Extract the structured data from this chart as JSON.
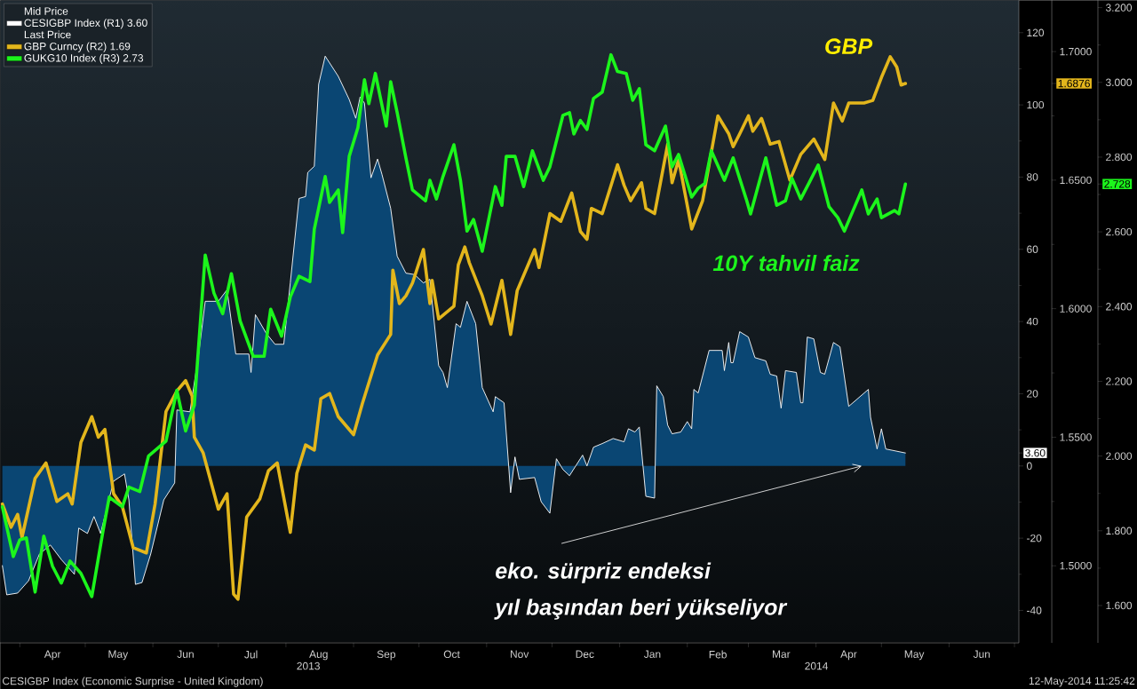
{
  "chart_data": {
    "type": "line",
    "xlim": [
      "2013-03-23",
      "2014-07-03"
    ],
    "xticks": [
      {
        "value": "2013-04-16",
        "label": "Apr"
      },
      {
        "value": "2013-05-16",
        "label": "May"
      },
      {
        "value": "2013-06-16",
        "label": "Jun"
      },
      {
        "value": "2013-07-16",
        "label": "Jul"
      },
      {
        "value": "2013-08-16",
        "label": "Aug"
      },
      {
        "value": "2013-09-16",
        "label": "Sep"
      },
      {
        "value": "2013-10-16",
        "label": "Oct"
      },
      {
        "value": "2013-11-16",
        "label": "Nov"
      },
      {
        "value": "2013-12-16",
        "label": "Dec"
      },
      {
        "value": "2014-01-16",
        "label": "Jan"
      },
      {
        "value": "2014-02-15",
        "label": "Feb"
      },
      {
        "value": "2014-03-16",
        "label": "Mar"
      },
      {
        "value": "2014-04-16",
        "label": "Apr"
      },
      {
        "value": "2014-05-16",
        "label": "May"
      },
      {
        "value": "2014-06-16",
        "label": "Jun"
      },
      {
        "value": "2013-04-01",
        "label": null
      },
      {
        "value": "2013-05-01",
        "label": null
      },
      {
        "value": "2013-06-01",
        "label": null
      },
      {
        "value": "2013-07-01",
        "label": null
      },
      {
        "value": "2013-08-01",
        "label": null
      },
      {
        "value": "2013-09-01",
        "label": null
      },
      {
        "value": "2013-10-01",
        "label": null
      },
      {
        "value": "2013-11-01",
        "label": null
      },
      {
        "value": "2013-12-01",
        "label": null
      },
      {
        "value": "2014-01-01",
        "label": null
      },
      {
        "value": "2014-02-01",
        "label": null
      },
      {
        "value": "2014-03-01",
        "label": null
      },
      {
        "value": "2014-04-01",
        "label": null
      },
      {
        "value": "2014-05-01",
        "label": null
      },
      {
        "value": "2014-06-01",
        "label": null
      },
      {
        "value": "2014-07-01",
        "label": null
      }
    ],
    "ylim": [
      -49,
      129
    ],
    "yticks": [
      -40,
      -20,
      0,
      20,
      40,
      60,
      80,
      100,
      120,
      {
        "value": 3.6,
        "label": "3.60"
      }
    ],
    "y2lim": [
      1.47,
      1.72
    ],
    "y2ticks": [
      {
        "value": 1.5,
        "label": "1.5000"
      },
      {
        "value": 1.55,
        "label": "1.5500"
      },
      {
        "value": 1.6,
        "label": "1.6000"
      },
      {
        "value": 1.65,
        "label": "1.6500"
      },
      {
        "value": 1.7,
        "label": "1.7000"
      },
      {
        "value": 1.6876,
        "label": "1.6876"
      }
    ],
    "y3lim": [
      1.5,
      3.22
    ],
    "y3ticks": [
      {
        "value": 1.6,
        "label": "1.600"
      },
      {
        "value": 1.8,
        "label": "1.800"
      },
      {
        "value": 2.0,
        "label": "2.000"
      },
      {
        "value": 2.2,
        "label": "2.200"
      },
      {
        "value": 2.4,
        "label": "2.400"
      },
      {
        "value": 2.6,
        "label": "2.600"
      },
      {
        "value": 2.8,
        "label": "2.800"
      },
      {
        "value": 3.0,
        "label": "3.000"
      },
      {
        "value": 3.2,
        "label": "3.200"
      },
      {
        "value": 2.728,
        "label": "2.728"
      }
    ],
    "legend": "top left",
    "annotations": [
      "Mid Price",
      "Last Price",
      "GBP",
      "10Y tahvil faiz",
      {
        "text": "eko. sürpriz endeksi",
        "x": "2014-04-22",
        "y": 0
      },
      "yıl başından beri yükseliyor",
      "CESIGBP Index (Economic Surprise - United Kingdom)",
      "12-May-2014 11:25:42",
      "2013",
      "2014"
    ],
    "series": [
      {
        "name": "CESIGBP Index (R1) 3.60",
        "type": "area",
        "color": "#ffffff",
        "x": [
          "2013-03-24",
          "2013-03-26",
          "2013-03-31",
          "2013-04-05",
          "2013-04-10",
          "2013-04-15",
          "2013-04-20",
          "2013-04-26",
          "2013-04-28",
          "2013-05-02",
          "2013-05-05",
          "2013-05-08",
          "2013-05-14",
          "2013-05-19",
          "2013-05-21",
          "2013-05-24",
          "2013-05-27",
          "2013-05-31",
          "2013-06-06",
          "2013-06-11",
          "2013-06-12",
          "2013-06-18",
          "2013-06-22",
          "2013-06-25",
          "2013-07-01",
          "2013-07-05",
          "2013-07-09",
          "2013-07-15",
          "2013-07-16",
          "2013-07-18",
          "2013-07-23",
          "2013-07-27",
          "2013-07-31",
          "2013-08-03",
          "2013-08-07",
          "2013-08-10",
          "2013-08-11",
          "2013-08-14",
          "2013-08-16",
          "2013-08-19",
          "2013-08-25",
          "2013-08-30",
          "2013-09-02",
          "2013-09-04",
          "2013-09-06",
          "2013-09-09",
          "2013-09-12",
          "2013-09-14",
          "2013-09-18",
          "2013-09-21",
          "2013-09-25",
          "2013-09-29",
          "2013-10-03",
          "2013-10-06",
          "2013-10-10",
          "2013-10-12",
          "2013-10-14",
          "2013-10-18",
          "2013-10-20",
          "2013-10-23",
          "2013-10-27",
          "2013-10-30",
          "2013-11-04",
          "2013-11-05",
          "2013-11-09",
          "2013-11-12",
          "2013-11-14",
          "2013-11-16",
          "2013-11-23",
          "2013-11-26",
          "2013-11-30",
          "2013-12-03",
          "2013-12-06",
          "2013-12-09",
          "2013-12-15",
          "2013-12-17",
          "2013-12-20",
          "2013-12-24",
          "2013-12-29",
          "2014-01-03",
          "2014-01-05",
          "2014-01-08",
          "2014-01-10",
          "2014-01-13",
          "2014-01-17",
          "2014-01-18",
          "2014-01-21",
          "2014-01-23",
          "2014-01-25",
          "2014-01-29",
          "2014-02-01",
          "2014-02-03",
          "2014-02-04",
          "2014-02-06",
          "2014-02-11",
          "2014-02-17",
          "2014-02-18",
          "2014-02-20",
          "2014-02-21",
          "2014-02-22",
          "2014-02-25",
          "2014-03-01",
          "2014-03-04",
          "2014-03-09",
          "2014-03-11",
          "2014-03-14",
          "2014-03-16",
          "2014-03-18",
          "2014-03-23",
          "2014-03-25",
          "2014-03-26",
          "2014-03-28",
          "2014-03-31",
          "2014-04-03",
          "2014-04-05",
          "2014-04-09",
          "2014-04-12",
          "2014-04-16",
          "2014-04-25",
          "2014-04-26",
          "2014-04-29",
          "2014-05-01",
          "2014-05-03",
          "2014-05-12"
        ],
        "values": [
          -27.6,
          -35.7,
          -35.2,
          -31.8,
          -24.4,
          -21.9,
          -25.9,
          -30.0,
          -17.2,
          -18.7,
          -14.0,
          -18.7,
          -4.2,
          -2.2,
          -9.4,
          -32.8,
          -32.3,
          -24.4,
          -9.4,
          -4.7,
          15.5,
          15.0,
          31.0,
          45.6,
          45.6,
          48.8,
          31.0,
          31.0,
          25.9,
          41.9,
          36.7,
          33.7,
          33.7,
          50.7,
          74.1,
          74.6,
          81.3,
          83.0,
          105.7,
          113.5,
          107.9,
          101.5,
          96.3,
          102.2,
          100.5,
          79.8,
          85.0,
          80.8,
          71.4,
          58.1,
          53.4,
          53.0,
          50.7,
          51.7,
          27.8,
          25.9,
          21.7,
          39.4,
          38.4,
          45.6,
          39.4,
          21.7,
          15.0,
          19.2,
          17.5,
          -7.4,
          2.5,
          -3.7,
          -3.2,
          -9.9,
          -13.1,
          2.0,
          -1.0,
          -2.7,
          3.0,
          0.0,
          5.2,
          6.2,
          7.6,
          6.7,
          10.3,
          9.4,
          10.8,
          -8.4,
          -8.9,
          22.2,
          19.2,
          11.3,
          8.9,
          9.4,
          12.3,
          10.3,
          21.2,
          20.2,
          32.0,
          32.0,
          26.4,
          34.2,
          28.6,
          28.6,
          37.2,
          35.7,
          30.0,
          29.1,
          25.4,
          24.9,
          16.0,
          26.4,
          25.9,
          17.5,
          17.5,
          35.7,
          35.2,
          25.9,
          25.4,
          34.2,
          33.0,
          16.5,
          21.2,
          13.5,
          4.7,
          10.3,
          4.7,
          3.6
        ]
      },
      {
        "name": "GBP Curncy (R2) 1.69",
        "type": "line",
        "axis": "y2",
        "color": "#e3b61c",
        "x": [
          "2013-03-24",
          "2013-03-28",
          "2013-03-31",
          "2013-04-02",
          "2013-04-08",
          "2013-04-13",
          "2013-04-18",
          "2013-04-23",
          "2013-04-25",
          "2013-04-29",
          "2013-05-04",
          "2013-05-07",
          "2013-05-10",
          "2013-05-14",
          "2013-05-18",
          "2013-05-23",
          "2013-05-29",
          "2013-06-02",
          "2013-06-07",
          "2013-06-12",
          "2013-06-16",
          "2013-06-19",
          "2013-06-20",
          "2013-06-24",
          "2013-07-01",
          "2013-07-05",
          "2013-07-08",
          "2013-07-10",
          "2013-07-14",
          "2013-07-20",
          "2013-07-24",
          "2013-07-28",
          "2013-08-03",
          "2013-08-06",
          "2013-08-10",
          "2013-08-14",
          "2013-08-17",
          "2013-08-21",
          "2013-08-25",
          "2013-09-01",
          "2013-09-05",
          "2013-09-12",
          "2013-09-18",
          "2013-09-19",
          "2013-09-22",
          "2013-09-25",
          "2013-09-28",
          "2013-10-03",
          "2013-10-06",
          "2013-10-07",
          "2013-10-10",
          "2013-10-17",
          "2013-10-19",
          "2013-10-22",
          "2013-10-24",
          "2013-10-30",
          "2013-11-03",
          "2013-11-08",
          "2013-11-12",
          "2013-11-15",
          "2013-11-18",
          "2013-11-23",
          "2013-11-25",
          "2013-11-30",
          "2013-12-05",
          "2013-12-10",
          "2013-12-14",
          "2013-12-17",
          "2013-12-19",
          "2013-12-24",
          "2013-12-31",
          "2014-01-03",
          "2014-01-06",
          "2014-01-11",
          "2014-01-13",
          "2014-01-17",
          "2014-01-23",
          "2014-01-25",
          "2014-01-28",
          "2014-02-03",
          "2014-02-08",
          "2014-02-15",
          "2014-02-20",
          "2014-02-22",
          "2014-02-25",
          "2014-03-01",
          "2014-03-03",
          "2014-03-07",
          "2014-03-11",
          "2014-03-15",
          "2014-03-20",
          "2014-03-25",
          "2014-03-31",
          "2014-04-05",
          "2014-04-09",
          "2014-04-13",
          "2014-04-16",
          "2014-04-23",
          "2014-04-27",
          "2014-05-01",
          "2014-05-05",
          "2014-05-08",
          "2014-05-10",
          "2014-05-12"
        ],
        "values": [
          1.524,
          1.515,
          1.52,
          1.511,
          1.534,
          1.54,
          1.525,
          1.528,
          1.524,
          1.548,
          1.558,
          1.55,
          1.553,
          1.528,
          1.523,
          1.507,
          1.505,
          1.524,
          1.56,
          1.568,
          1.572,
          1.566,
          1.55,
          1.544,
          1.522,
          1.528,
          1.489,
          1.487,
          1.519,
          1.526,
          1.537,
          1.54,
          1.513,
          1.536,
          1.547,
          1.545,
          1.565,
          1.567,
          1.558,
          1.551,
          1.563,
          1.582,
          1.59,
          1.615,
          1.602,
          1.605,
          1.61,
          1.623,
          1.602,
          1.611,
          1.596,
          1.601,
          1.617,
          1.624,
          1.618,
          1.605,
          1.594,
          1.611,
          1.59,
          1.607,
          1.613,
          1.623,
          1.616,
          1.637,
          1.634,
          1.645,
          1.63,
          1.627,
          1.639,
          1.637,
          1.656,
          1.648,
          1.642,
          1.649,
          1.639,
          1.637,
          1.664,
          1.649,
          1.658,
          1.631,
          1.642,
          1.675,
          1.668,
          1.663,
          1.668,
          1.675,
          1.669,
          1.674,
          1.664,
          1.665,
          1.65,
          1.66,
          1.666,
          1.658,
          1.68,
          1.673,
          1.68,
          1.68,
          1.681,
          1.69,
          1.698,
          1.694,
          1.687,
          1.6876
        ]
      },
      {
        "name": "GUKG10 Index (R3) 2.73",
        "type": "line",
        "axis": "y3",
        "color": "#1cf51c",
        "x": [
          "2013-03-24",
          "2013-03-29",
          "2013-04-01",
          "2013-04-04",
          "2013-04-08",
          "2013-04-12",
          "2013-04-16",
          "2013-04-20",
          "2013-04-24",
          "2013-04-29",
          "2013-05-04",
          "2013-05-09",
          "2013-05-12",
          "2013-05-18",
          "2013-05-21",
          "2013-05-26",
          "2013-05-30",
          "2013-06-07",
          "2013-06-12",
          "2013-06-16",
          "2013-06-20",
          "2013-06-25",
          "2013-06-29",
          "2013-07-03",
          "2013-07-07",
          "2013-07-11",
          "2013-07-17",
          "2013-07-22",
          "2013-07-25",
          "2013-07-30",
          "2013-08-03",
          "2013-08-07",
          "2013-08-12",
          "2013-08-14",
          "2013-08-19",
          "2013-08-21",
          "2013-08-25",
          "2013-08-27",
          "2013-08-30",
          "2013-09-03",
          "2013-09-06",
          "2013-09-08",
          "2013-09-11",
          "2013-09-16",
          "2013-09-18",
          "2013-09-21",
          "2013-09-25",
          "2013-09-28",
          "2013-10-04",
          "2013-10-06",
          "2013-10-09",
          "2013-10-12",
          "2013-10-17",
          "2013-10-20",
          "2013-10-23",
          "2013-10-26",
          "2013-10-30",
          "2013-11-05",
          "2013-11-08",
          "2013-11-10",
          "2013-11-14",
          "2013-11-18",
          "2013-11-22",
          "2013-11-27",
          "2013-11-30",
          "2013-12-06",
          "2013-12-09",
          "2013-12-11",
          "2013-12-14",
          "2013-12-17",
          "2013-12-20",
          "2013-12-24",
          "2013-12-28",
          "2013-12-31",
          "2014-01-04",
          "2014-01-07",
          "2014-01-10",
          "2014-01-13",
          "2014-01-17",
          "2014-01-22",
          "2014-01-25",
          "2014-01-28",
          "2014-02-03",
          "2014-02-06",
          "2014-02-09",
          "2014-02-12",
          "2014-02-18",
          "2014-02-22",
          "2014-02-28",
          "2014-03-02",
          "2014-03-09",
          "2014-03-14",
          "2014-03-18",
          "2014-03-21",
          "2014-03-25",
          "2014-03-29",
          "2014-04-02",
          "2014-04-07",
          "2014-04-11",
          "2014-04-14",
          "2014-04-18",
          "2014-04-22",
          "2014-04-25",
          "2014-04-29",
          "2014-05-01",
          "2014-05-07",
          "2014-05-09",
          "2014-05-12"
        ],
        "values": [
          1.864,
          1.731,
          1.776,
          1.781,
          1.636,
          1.786,
          1.705,
          1.66,
          1.719,
          1.686,
          1.624,
          1.795,
          1.89,
          1.864,
          1.917,
          1.905,
          2.0,
          2.04,
          2.176,
          2.067,
          2.136,
          2.538,
          2.436,
          2.381,
          2.488,
          2.362,
          2.267,
          2.267,
          2.393,
          2.321,
          2.426,
          2.481,
          2.467,
          2.607,
          2.748,
          2.679,
          2.712,
          2.598,
          2.802,
          2.879,
          3.007,
          2.943,
          3.024,
          2.883,
          3.002,
          2.919,
          2.798,
          2.712,
          2.683,
          2.738,
          2.688,
          2.748,
          2.833,
          2.738,
          2.602,
          2.633,
          2.548,
          2.721,
          2.671,
          2.802,
          2.802,
          2.721,
          2.817,
          2.738,
          2.774,
          2.912,
          2.919,
          2.862,
          2.898,
          2.874,
          2.957,
          2.974,
          3.074,
          3.029,
          3.024,
          2.952,
          2.983,
          2.833,
          2.817,
          2.883,
          2.774,
          2.807,
          2.693,
          2.717,
          2.729,
          2.817,
          2.738,
          2.798,
          2.688,
          2.648,
          2.798,
          2.671,
          2.683,
          2.743,
          2.688,
          2.733,
          2.779,
          2.667,
          2.638,
          2.602,
          2.657,
          2.712,
          2.648,
          2.688,
          2.638,
          2.657,
          2.648,
          2.728
        ]
      }
    ]
  }
}
